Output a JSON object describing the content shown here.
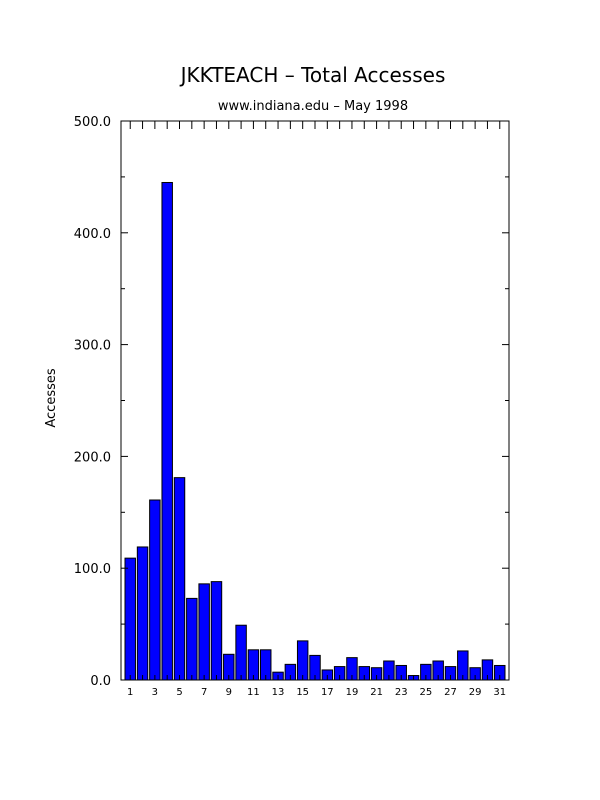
{
  "chart_data": {
    "type": "bar",
    "title": "JKKTEACH – Total Accesses",
    "subtitle": "www.indiana.edu – May 1998",
    "xlabel": "",
    "ylabel": "Accesses",
    "ylim": [
      0,
      500
    ],
    "yticks": [
      "0.0",
      "100.0",
      "200.0",
      "300.0",
      "400.0",
      "500.0"
    ],
    "categories": [
      "1",
      "2",
      "3",
      "4",
      "5",
      "6",
      "7",
      "8",
      "9",
      "10",
      "11",
      "12",
      "13",
      "14",
      "15",
      "16",
      "17",
      "18",
      "19",
      "20",
      "21",
      "22",
      "23",
      "24",
      "25",
      "26",
      "27",
      "28",
      "29",
      "30",
      "31"
    ],
    "xtick_labels": [
      "1",
      "3",
      "5",
      "7",
      "9",
      "11",
      "13",
      "15",
      "17",
      "19",
      "21",
      "23",
      "25",
      "27",
      "29",
      "31"
    ],
    "values": [
      109,
      119,
      161,
      445,
      181,
      73,
      86,
      88,
      23,
      49,
      27,
      27,
      7,
      14,
      35,
      22,
      9,
      12,
      20,
      12,
      11,
      17,
      13,
      4,
      14,
      17,
      12,
      26,
      11,
      18,
      13
    ],
    "bar_color": "#0000ff",
    "grid": false
  }
}
